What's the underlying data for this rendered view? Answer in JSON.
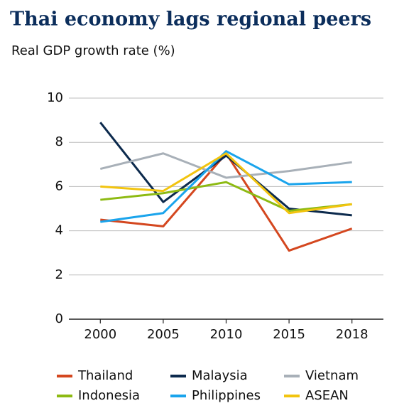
{
  "chart_data": {
    "type": "line",
    "title": "Thai economy lags regional peers",
    "subtitle": "Real GDP growth rate (%)",
    "categories": [
      "2000",
      "2005",
      "2010",
      "2015",
      "2018"
    ],
    "series": [
      {
        "name": "Thailand",
        "color": "#d4471f",
        "values": [
          4.5,
          4.2,
          7.5,
          3.1,
          4.1
        ]
      },
      {
        "name": "Malaysia",
        "color": "#0c2a4d",
        "values": [
          8.9,
          5.3,
          7.4,
          5.0,
          4.7
        ]
      },
      {
        "name": "Vietnam",
        "color": "#a8b0b8",
        "values": [
          6.8,
          7.5,
          6.4,
          6.7,
          7.1
        ]
      },
      {
        "name": "Indonesia",
        "color": "#8dba12",
        "values": [
          5.4,
          5.7,
          6.2,
          4.9,
          5.2
        ]
      },
      {
        "name": "Philippines",
        "color": "#1aa4ec",
        "values": [
          4.4,
          4.8,
          7.6,
          6.1,
          6.2
        ]
      },
      {
        "name": "ASEAN",
        "color": "#f2c40f",
        "values": [
          6.0,
          5.8,
          7.5,
          4.8,
          5.2
        ]
      }
    ],
    "ylim": [
      0,
      10
    ],
    "yticks": [
      0,
      2,
      4,
      6,
      8,
      10
    ],
    "grid": true
  }
}
